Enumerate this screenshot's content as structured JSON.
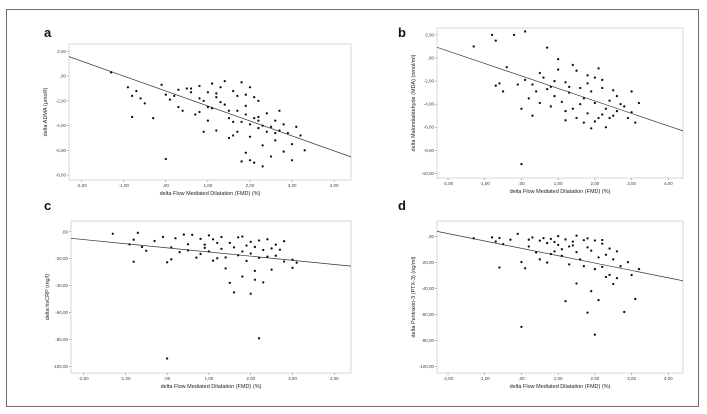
{
  "chart_data": [
    {
      "panel": "a",
      "type": "scatter",
      "xlabel": "delta Flow Mediated Dilatation (FMD) (%)",
      "ylabel": "delta ADMA (µmol/l)",
      "xticks": [
        "-2,00",
        "-1,00",
        ",00",
        "1,00",
        "2,00",
        "3,00",
        "4,00"
      ],
      "yticks": [
        "2,00",
        ",00",
        "-2,00",
        "-4,00",
        "-6,00",
        "-8,00"
      ],
      "xlim": [
        -2.3,
        4.4
      ],
      "ylim": [
        -8.4,
        2.6
      ],
      "fit_line": [
        [
          -2.3,
          1.58
        ],
        [
          4.4,
          -6.53
        ]
      ],
      "points": [
        [
          -1.3,
          0.3
        ],
        [
          -0.9,
          -0.9
        ],
        [
          -0.8,
          -1.6
        ],
        [
          -0.8,
          -3.3
        ],
        [
          -0.7,
          -1.2
        ],
        [
          -0.6,
          -1.8
        ],
        [
          -0.5,
          -2.2
        ],
        [
          -0.3,
          -3.4
        ],
        [
          -0.1,
          -0.7
        ],
        [
          0.0,
          -1.5
        ],
        [
          0.0,
          -6.7
        ],
        [
          0.1,
          -1.9
        ],
        [
          0.2,
          -1.6
        ],
        [
          0.3,
          -2.5
        ],
        [
          0.3,
          -1.1
        ],
        [
          0.4,
          -2.8
        ],
        [
          0.5,
          -1.0
        ],
        [
          0.6,
          -1.0
        ],
        [
          0.6,
          -1.3
        ],
        [
          0.7,
          -3.1
        ],
        [
          0.8,
          -0.8
        ],
        [
          0.8,
          -1.8
        ],
        [
          0.8,
          -2.9
        ],
        [
          0.9,
          -2.0
        ],
        [
          0.9,
          -4.5
        ],
        [
          1.0,
          -1.3
        ],
        [
          1.0,
          -3.6
        ],
        [
          1.1,
          -0.6
        ],
        [
          1.1,
          -2.6
        ],
        [
          1.2,
          -1.7
        ],
        [
          1.2,
          -4.4
        ],
        [
          1.3,
          -2.1
        ],
        [
          1.3,
          -0.9
        ],
        [
          1.4,
          -0.4
        ],
        [
          1.4,
          -2.3
        ],
        [
          1.5,
          -3.4
        ],
        [
          1.5,
          -5.0
        ],
        [
          1.6,
          -1.2
        ],
        [
          1.6,
          -4.8
        ],
        [
          1.7,
          -2.8
        ],
        [
          1.7,
          -1.6
        ],
        [
          1.7,
          -4.5
        ],
        [
          1.8,
          -0.5
        ],
        [
          1.8,
          -3.7
        ],
        [
          1.8,
          -6.9
        ],
        [
          1.9,
          -1.5
        ],
        [
          1.9,
          -2.4
        ],
        [
          1.9,
          -3.1
        ],
        [
          2.0,
          -3.9
        ],
        [
          2.0,
          -4.9
        ],
        [
          2.0,
          -0.9
        ],
        [
          2.0,
          -6.8
        ],
        [
          2.1,
          -1.7
        ],
        [
          2.1,
          -3.4
        ],
        [
          2.2,
          -2.0
        ],
        [
          2.2,
          -3.6
        ],
        [
          2.2,
          -4.2
        ],
        [
          2.3,
          -4.0
        ],
        [
          2.3,
          -5.6
        ],
        [
          2.3,
          -7.3
        ],
        [
          2.4,
          -4.5
        ],
        [
          2.4,
          -3.0
        ],
        [
          2.5,
          -4.1
        ],
        [
          2.5,
          -6.5
        ],
        [
          2.6,
          -3.6
        ],
        [
          2.6,
          -5.2
        ],
        [
          2.7,
          -4.4
        ],
        [
          2.7,
          -2.8
        ],
        [
          2.8,
          -6.1
        ],
        [
          2.8,
          -3.9
        ],
        [
          2.9,
          -4.6
        ],
        [
          3.0,
          -5.5
        ],
        [
          3.0,
          -6.8
        ],
        [
          3.1,
          -4.1
        ],
        [
          2.1,
          -7.0
        ],
        [
          1.5,
          -2.8
        ],
        [
          3.2,
          -4.8
        ],
        [
          3.3,
          -6.0
        ],
        [
          1.2,
          -1.4
        ],
        [
          1.0,
          -2.5
        ],
        [
          1.6,
          -3.7
        ],
        [
          1.9,
          -6.2
        ],
        [
          2.2,
          -3.3
        ],
        [
          2.6,
          -4.6
        ]
      ]
    },
    {
      "panel": "b",
      "type": "scatter",
      "xlabel": "delta Flow Mediated Dilatation (FMD) (%)",
      "ylabel": "delta Malondialdehyde (MDA) (nmol/ml)",
      "xticks": [
        "-2,00",
        "-1,00",
        ",00",
        "1,00",
        "2,00",
        "3,00",
        "4,00"
      ],
      "yticks": [
        "2,00",
        ",00",
        "-2,00",
        "-4,00",
        "-6,00",
        "-8,00",
        "-10,00"
      ],
      "xlim": [
        -2.3,
        4.4
      ],
      "ylim": [
        -10.4,
        2.6
      ],
      "fit_line": [
        [
          -2.3,
          0.93
        ],
        [
          4.4,
          -6.32
        ]
      ],
      "points": [
        [
          -1.3,
          1.0
        ],
        [
          -0.8,
          2.0
        ],
        [
          -0.7,
          -2.4
        ],
        [
          -0.7,
          1.5
        ],
        [
          -0.6,
          -2.2
        ],
        [
          -0.5,
          -2.9
        ],
        [
          -0.4,
          -0.8
        ],
        [
          -0.2,
          2.0
        ],
        [
          -0.1,
          -2.3
        ],
        [
          0.0,
          -4.4
        ],
        [
          0.0,
          -9.2
        ],
        [
          0.1,
          -1.9
        ],
        [
          0.1,
          2.3
        ],
        [
          0.2,
          -3.5
        ],
        [
          0.3,
          -2.3
        ],
        [
          0.3,
          -5.0
        ],
        [
          0.4,
          -2.9
        ],
        [
          0.5,
          -1.3
        ],
        [
          0.5,
          -3.9
        ],
        [
          0.6,
          -1.7
        ],
        [
          0.7,
          -2.7
        ],
        [
          0.7,
          0.9
        ],
        [
          0.8,
          -4.2
        ],
        [
          0.8,
          -2.5
        ],
        [
          0.9,
          -3.3
        ],
        [
          1.0,
          -0.1
        ],
        [
          1.0,
          -1.0
        ],
        [
          1.1,
          -3.8
        ],
        [
          1.2,
          -2.1
        ],
        [
          1.2,
          -5.4
        ],
        [
          1.3,
          -3.0
        ],
        [
          1.3,
          -2.5
        ],
        [
          1.4,
          -4.4
        ],
        [
          1.5,
          -1.1
        ],
        [
          1.5,
          -5.2
        ],
        [
          1.6,
          -2.6
        ],
        [
          1.6,
          -4.0
        ],
        [
          1.7,
          -3.5
        ],
        [
          1.7,
          -5.6
        ],
        [
          1.8,
          -1.5
        ],
        [
          1.8,
          -4.8
        ],
        [
          1.9,
          -2.9
        ],
        [
          1.9,
          -6.1
        ],
        [
          2.0,
          -1.7
        ],
        [
          2.0,
          -3.9
        ],
        [
          2.1,
          -5.2
        ],
        [
          2.1,
          -0.9
        ],
        [
          2.2,
          -2.6
        ],
        [
          2.2,
          -4.9
        ],
        [
          2.3,
          -4.4
        ],
        [
          2.3,
          -6.0
        ],
        [
          2.4,
          -5.2
        ],
        [
          2.4,
          -3.7
        ],
        [
          2.5,
          -5.0
        ],
        [
          2.5,
          -2.8
        ],
        [
          2.6,
          -3.3
        ],
        [
          2.6,
          -4.6
        ],
        [
          2.7,
          -4.0
        ],
        [
          2.8,
          -4.2
        ],
        [
          2.9,
          -5.2
        ],
        [
          3.0,
          -2.9
        ],
        [
          3.0,
          -4.7
        ],
        [
          3.1,
          -5.6
        ],
        [
          3.2,
          -3.9
        ],
        [
          1.4,
          -0.6
        ],
        [
          1.8,
          -2.2
        ],
        [
          2.0,
          -5.5
        ],
        [
          2.2,
          -1.9
        ],
        [
          1.2,
          -4.6
        ],
        [
          0.9,
          -2.0
        ]
      ]
    },
    {
      "panel": "c",
      "type": "scatter",
      "xlabel": "delta Flow Mediated Dilatation (FMD) (%)",
      "ylabel": "delta hsCRP (mg/l)",
      "xticks": [
        "-2,00",
        "-1,00",
        ",00",
        "1,00",
        "2,00",
        "3,00",
        "4,00"
      ],
      "yticks": [
        ",00",
        "-20,00",
        "-40,00",
        "-60,00",
        "-80,00",
        "-100,00"
      ],
      "xlim": [
        -2.3,
        4.4
      ],
      "ylim": [
        -105,
        8
      ],
      "fit_line": [
        [
          -2.3,
          -4.87
        ],
        [
          4.4,
          -25.54
        ]
      ],
      "points": [
        [
          -1.3,
          -1.5
        ],
        [
          -0.9,
          -9.4
        ],
        [
          -0.8,
          -5.9
        ],
        [
          -0.8,
          -22.3
        ],
        [
          -0.7,
          -0.8
        ],
        [
          -0.6,
          -11.3
        ],
        [
          -0.5,
          -14.1
        ],
        [
          -0.3,
          -6.9
        ],
        [
          -0.1,
          -3.8
        ],
        [
          0.0,
          -22.7
        ],
        [
          0.0,
          -94.2
        ],
        [
          0.1,
          -20.5
        ],
        [
          0.1,
          -11.6
        ],
        [
          0.2,
          -4.8
        ],
        [
          0.3,
          -15.2
        ],
        [
          0.4,
          -2.1
        ],
        [
          0.5,
          -9.3
        ],
        [
          0.5,
          -13.8
        ],
        [
          0.6,
          -2.3
        ],
        [
          0.7,
          -19.2
        ],
        [
          0.8,
          -5.3
        ],
        [
          0.8,
          -16.5
        ],
        [
          0.9,
          -9.6
        ],
        [
          1.0,
          -2.7
        ],
        [
          1.0,
          -14.6
        ],
        [
          1.1,
          -5.6
        ],
        [
          1.1,
          -21.5
        ],
        [
          1.2,
          -8.3
        ],
        [
          1.3,
          -12.7
        ],
        [
          1.3,
          -3.9
        ],
        [
          1.4,
          -19.1
        ],
        [
          1.5,
          -8.3
        ],
        [
          1.5,
          -38.0
        ],
        [
          1.6,
          -11.6
        ],
        [
          1.6,
          -45.1
        ],
        [
          1.7,
          -17.5
        ],
        [
          1.7,
          -4.2
        ],
        [
          1.8,
          -14.7
        ],
        [
          1.8,
          -33.3
        ],
        [
          1.9,
          -10.2
        ],
        [
          1.9,
          -21.7
        ],
        [
          2.0,
          -7.5
        ],
        [
          2.0,
          -46.1
        ],
        [
          2.0,
          -16.2
        ],
        [
          2.1,
          -11.3
        ],
        [
          2.1,
          -29.1
        ],
        [
          2.2,
          -6.5
        ],
        [
          2.2,
          -19.4
        ],
        [
          2.2,
          -79.2
        ],
        [
          2.3,
          -13.6
        ],
        [
          2.3,
          -37.6
        ],
        [
          2.4,
          -5.6
        ],
        [
          2.4,
          -18.5
        ],
        [
          2.5,
          -12.4
        ],
        [
          2.5,
          -28.2
        ],
        [
          2.6,
          -9.6
        ],
        [
          2.6,
          -17.8
        ],
        [
          2.7,
          -13.4
        ],
        [
          2.8,
          -22.1
        ],
        [
          2.8,
          -7.0
        ],
        [
          3.0,
          -26.8
        ],
        [
          3.0,
          -20.7
        ],
        [
          3.1,
          -23.0
        ],
        [
          1.4,
          -27.2
        ],
        [
          1.8,
          -3.5
        ],
        [
          2.1,
          -35.7
        ],
        [
          0.9,
          -12.0
        ],
        [
          1.2,
          -19.7
        ]
      ]
    },
    {
      "panel": "d",
      "type": "scatter",
      "xlabel": "delta Flow Mediated Dilatation (FMD) (%)",
      "ylabel": "delta Pentraxin-3 (PTX-3) (ng/ml)",
      "xticks": [
        "-2,00",
        "-1,00",
        ",00",
        "1,00",
        "2,00",
        "3,00",
        "4,00"
      ],
      "yticks": [
        ",00",
        "-20,00",
        "-40,00",
        "-60,00",
        "-80,00",
        "-100,00"
      ],
      "xlim": [
        -2.3,
        4.4
      ],
      "ylim": [
        -105,
        12
      ],
      "fit_line": [
        [
          -2.3,
          4.0
        ],
        [
          4.4,
          -34.0
        ]
      ],
      "points": [
        [
          -1.3,
          -1.3
        ],
        [
          -0.8,
          -0.6
        ],
        [
          -0.7,
          -3.8
        ],
        [
          -0.6,
          -1.1
        ],
        [
          -0.6,
          -23.8
        ],
        [
          -0.5,
          -5.8
        ],
        [
          -0.3,
          -2.4
        ],
        [
          -0.1,
          2.1
        ],
        [
          0.0,
          -19.6
        ],
        [
          0.0,
          -69.5
        ],
        [
          0.1,
          -24.4
        ],
        [
          0.2,
          -2.4
        ],
        [
          0.2,
          -7.6
        ],
        [
          0.3,
          -0.7
        ],
        [
          0.4,
          -12.2
        ],
        [
          0.5,
          -3.1
        ],
        [
          0.5,
          -17.5
        ],
        [
          0.6,
          -1.2
        ],
        [
          0.7,
          -5.0
        ],
        [
          0.7,
          -20.0
        ],
        [
          0.8,
          -1.8
        ],
        [
          0.9,
          -4.2
        ],
        [
          0.9,
          -11.4
        ],
        [
          1.0,
          0.3
        ],
        [
          1.0,
          -6.4
        ],
        [
          1.1,
          -14.8
        ],
        [
          1.2,
          -2.2
        ],
        [
          1.2,
          -49.7
        ],
        [
          1.3,
          -7.6
        ],
        [
          1.3,
          -21.4
        ],
        [
          1.4,
          -3.9
        ],
        [
          1.5,
          -12.0
        ],
        [
          1.5,
          -36.1
        ],
        [
          1.5,
          0.7
        ],
        [
          1.6,
          -17.6
        ],
        [
          1.7,
          -2.7
        ],
        [
          1.7,
          -22.8
        ],
        [
          1.8,
          -8.3
        ],
        [
          1.8,
          -58.5
        ],
        [
          1.9,
          -10.8
        ],
        [
          1.9,
          -42.0
        ],
        [
          2.0,
          -3.0
        ],
        [
          2.0,
          -25.0
        ],
        [
          2.0,
          -75.5
        ],
        [
          2.1,
          -16.0
        ],
        [
          2.1,
          -48.9
        ],
        [
          2.2,
          -5.5
        ],
        [
          2.2,
          -23.3
        ],
        [
          2.3,
          -14.0
        ],
        [
          2.4,
          -29.5
        ],
        [
          2.4,
          -9.2
        ],
        [
          2.5,
          -36.5
        ],
        [
          2.5,
          -17.5
        ],
        [
          2.6,
          -32.0
        ],
        [
          2.6,
          -11.4
        ],
        [
          2.7,
          -22.8
        ],
        [
          2.8,
          -58.0
        ],
        [
          2.9,
          -19.7
        ],
        [
          3.0,
          -29.6
        ],
        [
          3.1,
          -48.0
        ],
        [
          3.2,
          -25.0
        ],
        [
          1.4,
          -6.8
        ],
        [
          1.8,
          -1.4
        ],
        [
          2.2,
          -2.6
        ],
        [
          1.1,
          -9.7
        ],
        [
          0.8,
          -13.4
        ],
        [
          2.3,
          -31.1
        ]
      ]
    }
  ]
}
